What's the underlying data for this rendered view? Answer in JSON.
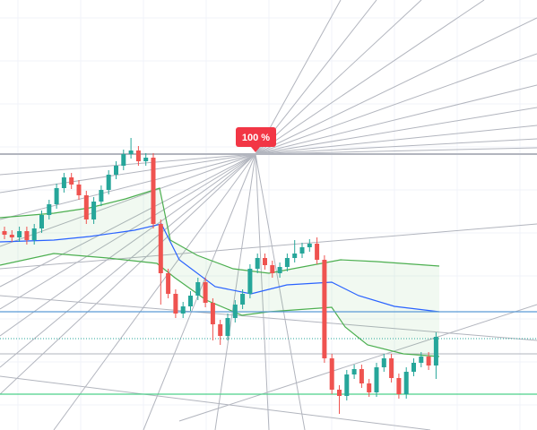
{
  "chart_data": {
    "type": "candlestick",
    "annotation": "100 %",
    "ylim": [
      0,
      480
    ],
    "up_color": "#26a69a",
    "down_color": "#ef5350",
    "open": [
      222,
      218,
      215,
      222,
      212,
      225,
      240,
      252,
      270,
      282,
      274,
      262,
      235,
      255,
      268,
      285,
      295,
      308,
      312,
      300,
      304,
      230,
      175,
      152,
      130,
      138,
      150,
      165,
      142,
      118,
      105,
      125,
      140,
      152,
      180,
      192,
      184,
      175,
      182,
      192,
      197,
      204,
      208,
      190,
      80,
      45,
      38,
      62,
      68,
      52,
      42,
      70,
      80,
      58,
      40,
      65,
      75,
      82,
      72
    ],
    "high": [
      227,
      223,
      227,
      227,
      230,
      245,
      257,
      275,
      287,
      287,
      279,
      267,
      260,
      273,
      290,
      300,
      313,
      326,
      317,
      309,
      309,
      235,
      180,
      157,
      143,
      155,
      170,
      170,
      147,
      123,
      130,
      145,
      157,
      185,
      197,
      197,
      189,
      187,
      197,
      212,
      209,
      213,
      215,
      195,
      85,
      50,
      67,
      73,
      73,
      57,
      75,
      85,
      85,
      63,
      70,
      80,
      87,
      87,
      109
    ],
    "low": [
      213,
      210,
      210,
      207,
      207,
      220,
      235,
      247,
      265,
      269,
      257,
      230,
      230,
      250,
      263,
      280,
      290,
      303,
      295,
      295,
      225,
      140,
      147,
      125,
      125,
      133,
      145,
      137,
      100,
      95,
      100,
      120,
      135,
      147,
      175,
      179,
      170,
      170,
      177,
      187,
      192,
      199,
      185,
      75,
      40,
      18,
      33,
      57,
      47,
      37,
      37,
      65,
      53,
      35,
      35,
      60,
      70,
      67,
      57
    ],
    "close": [
      218,
      215,
      222,
      212,
      225,
      240,
      252,
      270,
      282,
      274,
      262,
      235,
      255,
      268,
      285,
      295,
      308,
      312,
      300,
      304,
      230,
      175,
      152,
      130,
      138,
      150,
      165,
      142,
      118,
      105,
      125,
      140,
      152,
      180,
      192,
      184,
      175,
      182,
      192,
      197,
      204,
      208,
      190,
      80,
      45,
      38,
      62,
      68,
      52,
      42,
      70,
      80,
      58,
      40,
      65,
      75,
      82,
      72,
      104
    ],
    "levels": [
      {
        "value": 308,
        "color": "#b2b5be"
      },
      {
        "value": 132,
        "color": "#5b9bd5"
      },
      {
        "value": 102,
        "color": "#26a69a"
      },
      {
        "value": 40,
        "color": "#4cd08a"
      }
    ]
  }
}
